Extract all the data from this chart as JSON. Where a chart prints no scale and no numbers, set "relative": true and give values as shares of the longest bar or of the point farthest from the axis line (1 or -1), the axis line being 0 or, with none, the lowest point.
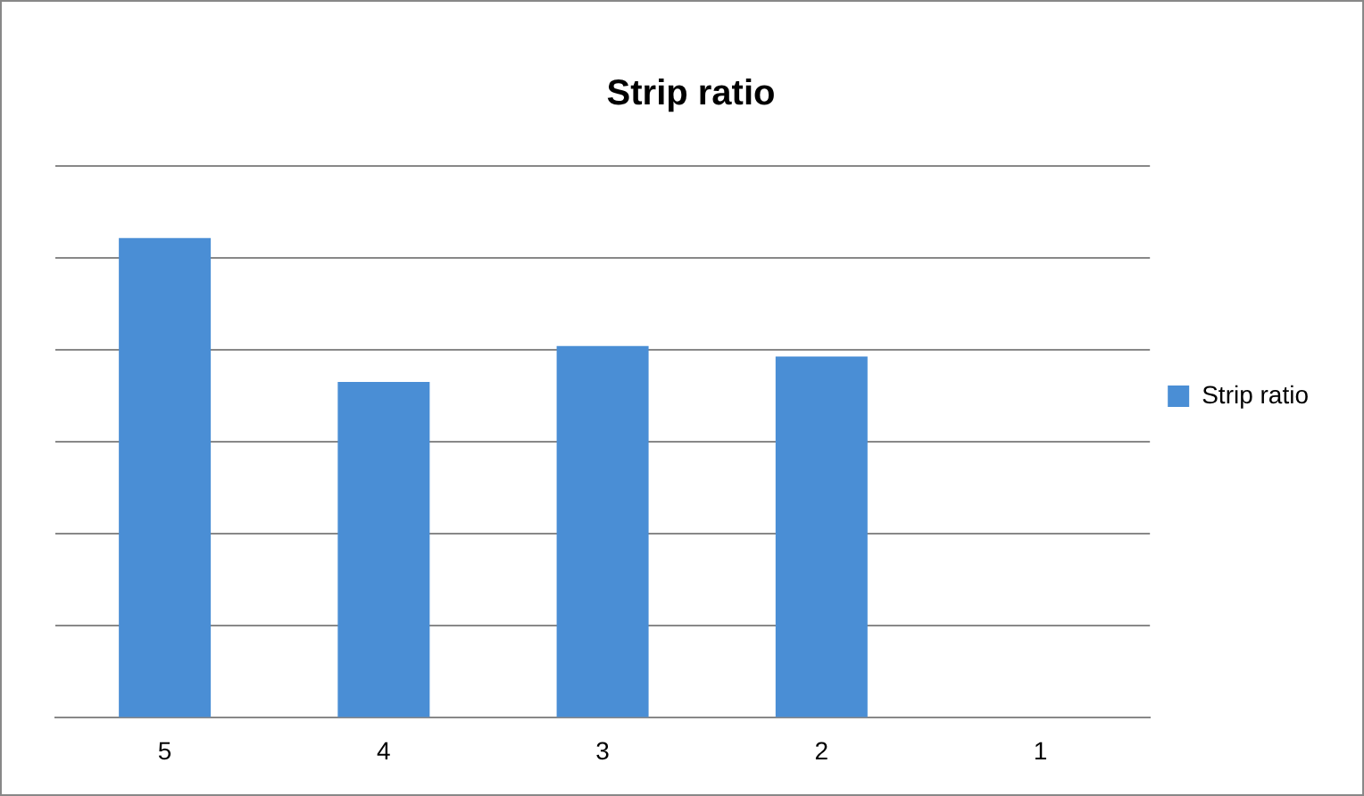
{
  "chart_data": {
    "type": "bar",
    "title": "Strip ratio",
    "categories": [
      "5",
      "4",
      "3",
      "2",
      "1"
    ],
    "relative": true,
    "series": [
      {
        "name": "Strip ratio",
        "color": "#4a8ed5",
        "values": [
          1,
          0.7,
          0.775,
          0.753,
          0
        ]
      }
    ],
    "grid": "y",
    "legend": "right"
  }
}
